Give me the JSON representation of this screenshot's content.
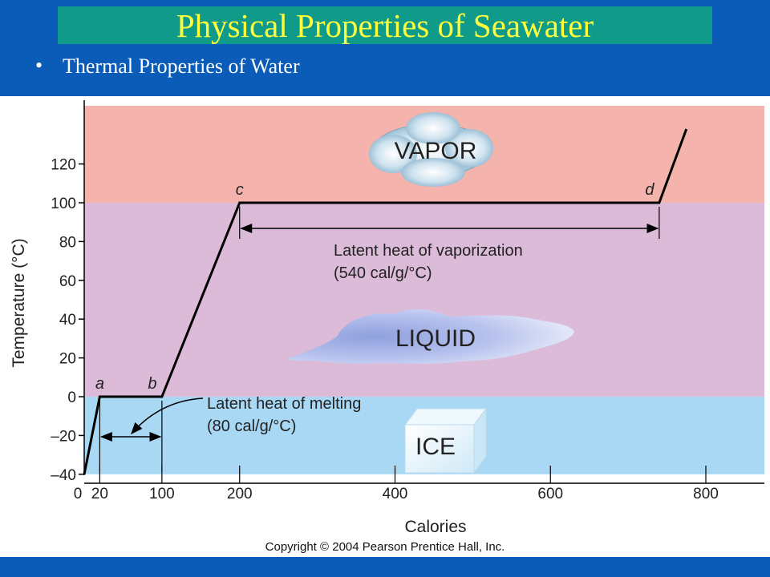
{
  "slide": {
    "title": "Physical Properties of Seawater",
    "bullet": "Thermal Properties of Water"
  },
  "colors": {
    "slide_background": "#0a5cb8",
    "title_band": "#0f9a8a",
    "title_text": "#ffff3c",
    "vapor_region": "#f4b3ad",
    "liquid_region": "#dbbbd8",
    "ice_region": "#a9d8f5",
    "line": "#000000"
  },
  "chart_data": {
    "type": "line",
    "xlabel": "Calories",
    "ylabel": "Temperature (°C)",
    "xlim": [
      0,
      880
    ],
    "ylim": [
      -40,
      150
    ],
    "x_ticks": [
      0,
      20,
      100,
      200,
      400,
      600,
      800
    ],
    "x_tick_labels": [
      "0",
      "20",
      "100",
      "200",
      "400",
      "600",
      "800"
    ],
    "y_ticks": [
      -40,
      -20,
      0,
      20,
      40,
      60,
      80,
      100,
      120
    ],
    "y_tick_labels": [
      "–40",
      "–20",
      "0",
      "20",
      "40",
      "60",
      "80",
      "100",
      "120"
    ],
    "series": [
      {
        "x": [
          0,
          20,
          100,
          200,
          740,
          775
        ],
        "y": [
          -40,
          0,
          0,
          100,
          100,
          138
        ]
      }
    ],
    "regions": [
      {
        "label": "VAPOR",
        "from": 100,
        "to": 150
      },
      {
        "label": "LIQUID",
        "from": 0,
        "to": 100
      },
      {
        "label": "ICE",
        "from": -40,
        "to": 0
      }
    ],
    "point_labels": [
      {
        "label": "a",
        "x": 20,
        "y": 0
      },
      {
        "label": "b",
        "x": 100,
        "y": 0
      },
      {
        "label": "c",
        "x": 200,
        "y": 100
      },
      {
        "label": "d",
        "x": 740,
        "y": 100
      }
    ],
    "annotations": {
      "vaporization": {
        "line1": "Latent heat of vaporization",
        "line2": "(540 cal/g/°C)",
        "from": 200,
        "to": 740
      },
      "melting": {
        "line1": "Latent heat of melting",
        "line2": "(80 cal/g/°C)",
        "from": 20,
        "to": 100
      }
    },
    "copyright": "Copyright © 2004 Pearson Prentice Hall, Inc."
  }
}
